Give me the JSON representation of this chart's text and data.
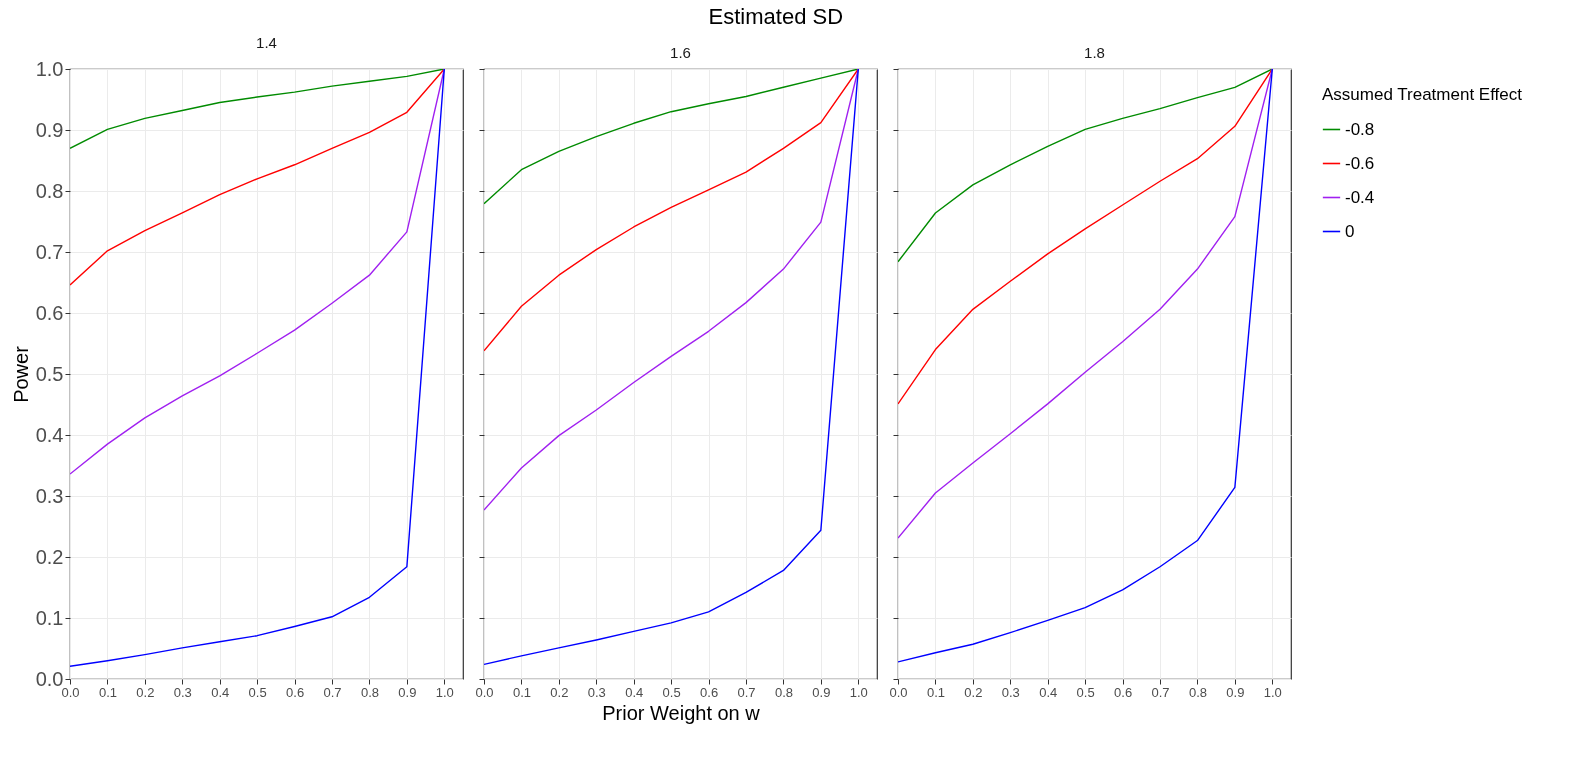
{
  "chart_data": [
    {
      "type": "line",
      "title": "1.4",
      "ylabel": "Power",
      "legend_title": "Assumed Treatment Effect",
      "legend": "right",
      "annotations": [
        "Estimated SD"
      ],
      "x": [
        0,
        0.1,
        0.2,
        0.3,
        0.4,
        0.5,
        0.6,
        0.7,
        0.8,
        0.9,
        1
      ],
      "xlim": [
        0,
        1.05
      ],
      "ylim": [
        0,
        1
      ],
      "xticks": [
        {
          "value": 0,
          "label": "0.0"
        },
        {
          "value": 0.1,
          "label": "0.1"
        },
        {
          "value": 0.2,
          "label": "0.2"
        },
        {
          "value": 0.3,
          "label": "0.3"
        },
        {
          "value": 0.4,
          "label": "0.4"
        },
        {
          "value": 0.5,
          "label": "0.5"
        },
        {
          "value": 0.6,
          "label": "0.6"
        },
        {
          "value": 0.7,
          "label": "0.7"
        },
        {
          "value": 0.8,
          "label": "0.8"
        },
        {
          "value": 0.9,
          "label": "0.9"
        },
        {
          "value": 1,
          "label": "1.0"
        }
      ],
      "yticks": [
        {
          "value": 0,
          "label": "0.0"
        },
        {
          "value": 0.1,
          "label": "0.1"
        },
        {
          "value": 0.2,
          "label": "0.2"
        },
        {
          "value": 0.3,
          "label": "0.3"
        },
        {
          "value": 0.4,
          "label": "0.4"
        },
        {
          "value": 0.5,
          "label": "0.5"
        },
        {
          "value": 0.6,
          "label": "0.6"
        },
        {
          "value": 0.7,
          "label": "0.7"
        },
        {
          "value": 0.8,
          "label": "0.8"
        },
        {
          "value": 0.9,
          "label": "0.9"
        },
        {
          "value": 1,
          "label": "1.0"
        }
      ],
      "grid": true,
      "series": [
        {
          "name": "-0.8",
          "color": "#008b00",
          "values": [
            0.87,
            0.901,
            0.919,
            0.932,
            0.945,
            0.954,
            0.962,
            0.972,
            0.98,
            0.988,
            1
          ]
        },
        {
          "name": "-0.6",
          "color": "#ff0000",
          "values": [
            0.646,
            0.702,
            0.735,
            0.764,
            0.794,
            0.82,
            0.843,
            0.87,
            0.896,
            0.929,
            1
          ]
        },
        {
          "name": "-0.4",
          "color": "#a020f0",
          "values": [
            0.336,
            0.385,
            0.428,
            0.464,
            0.497,
            0.534,
            0.572,
            0.616,
            0.662,
            0.733,
            1
          ]
        },
        {
          "name": "0",
          "color": "#0000ff",
          "values": [
            0.021,
            0.03,
            0.04,
            0.051,
            0.061,
            0.071,
            0.086,
            0.102,
            0.134,
            0.184,
            1
          ]
        }
      ]
    },
    {
      "type": "line",
      "title": "1.6",
      "xlabel": "Prior Weight on w",
      "tick_labels": "x",
      "x": [
        0,
        0.1,
        0.2,
        0.3,
        0.4,
        0.5,
        0.6,
        0.7,
        0.8,
        0.9,
        1
      ],
      "xlim": [
        0,
        1.05
      ],
      "ylim": [
        0,
        1
      ],
      "xticks": [
        {
          "value": 0,
          "label": "0.0"
        },
        {
          "value": 0.1,
          "label": "0.1"
        },
        {
          "value": 0.2,
          "label": "0.2"
        },
        {
          "value": 0.3,
          "label": "0.3"
        },
        {
          "value": 0.4,
          "label": "0.4"
        },
        {
          "value": 0.5,
          "label": "0.5"
        },
        {
          "value": 0.6,
          "label": "0.6"
        },
        {
          "value": 0.7,
          "label": "0.7"
        },
        {
          "value": 0.8,
          "label": "0.8"
        },
        {
          "value": 0.9,
          "label": "0.9"
        },
        {
          "value": 1,
          "label": "1.0"
        }
      ],
      "yticks": [
        {
          "value": 0,
          "label": null
        },
        {
          "value": 0.1,
          "label": null
        },
        {
          "value": 0.2,
          "label": null
        },
        {
          "value": 0.3,
          "label": null
        },
        {
          "value": 0.4,
          "label": null
        },
        {
          "value": 0.5,
          "label": null
        },
        {
          "value": 0.6,
          "label": null
        },
        {
          "value": 0.7,
          "label": null
        },
        {
          "value": 0.8,
          "label": null
        },
        {
          "value": 0.9,
          "label": null
        },
        {
          "value": 1,
          "label": null
        }
      ],
      "grid": true,
      "series": [
        {
          "name": "-0.8",
          "color": "#008b00",
          "values": [
            0.779,
            0.835,
            0.865,
            0.889,
            0.911,
            0.93,
            0.943,
            0.955,
            0.97,
            0.985,
            1
          ]
        },
        {
          "name": "-0.6",
          "color": "#ff0000",
          "values": [
            0.538,
            0.611,
            0.662,
            0.704,
            0.741,
            0.773,
            0.802,
            0.831,
            0.87,
            0.912,
            1
          ]
        },
        {
          "name": "-0.4",
          "color": "#a020f0",
          "values": [
            0.277,
            0.346,
            0.399,
            0.441,
            0.486,
            0.529,
            0.57,
            0.617,
            0.672,
            0.749,
            1
          ]
        },
        {
          "name": "0",
          "color": "#0000ff",
          "values": [
            0.024,
            0.038,
            0.051,
            0.064,
            0.078,
            0.092,
            0.11,
            0.142,
            0.178,
            0.244,
            1
          ]
        }
      ]
    },
    {
      "type": "line",
      "title": "1.8",
      "tick_labels": "x",
      "x": [
        0,
        0.1,
        0.2,
        0.3,
        0.4,
        0.5,
        0.6,
        0.7,
        0.8,
        0.9,
        1
      ],
      "xlim": [
        0,
        1.05
      ],
      "ylim": [
        0,
        1
      ],
      "xticks": [
        {
          "value": 0,
          "label": "0.0"
        },
        {
          "value": 0.1,
          "label": "0.1"
        },
        {
          "value": 0.2,
          "label": "0.2"
        },
        {
          "value": 0.3,
          "label": "0.3"
        },
        {
          "value": 0.4,
          "label": "0.4"
        },
        {
          "value": 0.5,
          "label": "0.5"
        },
        {
          "value": 0.6,
          "label": "0.6"
        },
        {
          "value": 0.7,
          "label": "0.7"
        },
        {
          "value": 0.8,
          "label": "0.8"
        },
        {
          "value": 0.9,
          "label": "0.9"
        },
        {
          "value": 1,
          "label": "1.0"
        }
      ],
      "yticks": [
        {
          "value": 0,
          "label": null
        },
        {
          "value": 0.1,
          "label": null
        },
        {
          "value": 0.2,
          "label": null
        },
        {
          "value": 0.3,
          "label": null
        },
        {
          "value": 0.4,
          "label": null
        },
        {
          "value": 0.5,
          "label": null
        },
        {
          "value": 0.6,
          "label": null
        },
        {
          "value": 0.7,
          "label": null
        },
        {
          "value": 0.8,
          "label": null
        },
        {
          "value": 0.9,
          "label": null
        },
        {
          "value": 1,
          "label": null
        }
      ],
      "grid": true,
      "series": [
        {
          "name": "-0.8",
          "color": "#008b00",
          "values": [
            0.684,
            0.764,
            0.81,
            0.843,
            0.873,
            0.901,
            0.919,
            0.935,
            0.953,
            0.97,
            1
          ]
        },
        {
          "name": "-0.6",
          "color": "#ff0000",
          "values": [
            0.451,
            0.54,
            0.606,
            0.652,
            0.697,
            0.738,
            0.777,
            0.816,
            0.853,
            0.906,
            1
          ]
        },
        {
          "name": "-0.4",
          "color": "#a020f0",
          "values": [
            0.231,
            0.305,
            0.354,
            0.402,
            0.451,
            0.503,
            0.553,
            0.606,
            0.672,
            0.758,
            1
          ]
        },
        {
          "name": "0",
          "color": "#0000ff",
          "values": [
            0.028,
            0.043,
            0.057,
            0.076,
            0.096,
            0.117,
            0.146,
            0.184,
            0.227,
            0.314,
            1
          ]
        }
      ]
    }
  ]
}
